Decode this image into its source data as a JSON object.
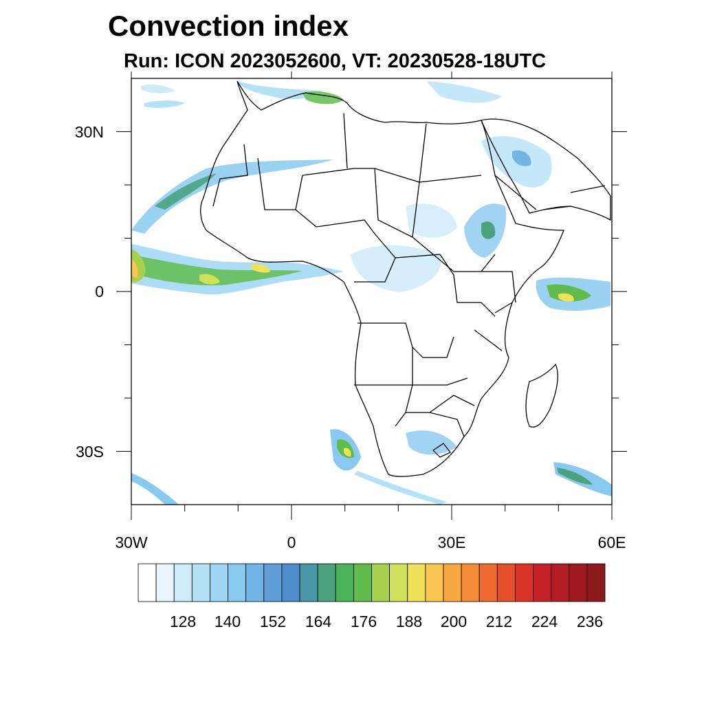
{
  "title": "Convection index",
  "subtitle": "Run: ICON 2023052600,  VT: 20230528-18UTC",
  "map": {
    "lon_range": [
      -30,
      60
    ],
    "lat_range": [
      -40,
      40
    ],
    "x_ticks": [
      "30W",
      "0",
      "30E",
      "60E"
    ],
    "y_ticks": [
      "30N",
      "0",
      "30S"
    ]
  },
  "colorbar": {
    "colors": [
      "#ffffff",
      "#e8f5fc",
      "#cdebf9",
      "#b5e1f7",
      "#9fd6f4",
      "#8ac9ef",
      "#74b5e5",
      "#5f9fd9",
      "#4e8fcb",
      "#4a96a9",
      "#4aa37e",
      "#4cb35b",
      "#62bc4d",
      "#a9cf4e",
      "#cfe05a",
      "#f0e15a",
      "#f9c74f",
      "#f7a941",
      "#f48b37",
      "#ee6a30",
      "#e4502b",
      "#da3329",
      "#c52228",
      "#b31c24",
      "#9e1a1e",
      "#8c1a1a"
    ],
    "labels": [
      "128",
      "140",
      "152",
      "164",
      "176",
      "188",
      "200",
      "212",
      "224",
      "236"
    ]
  }
}
